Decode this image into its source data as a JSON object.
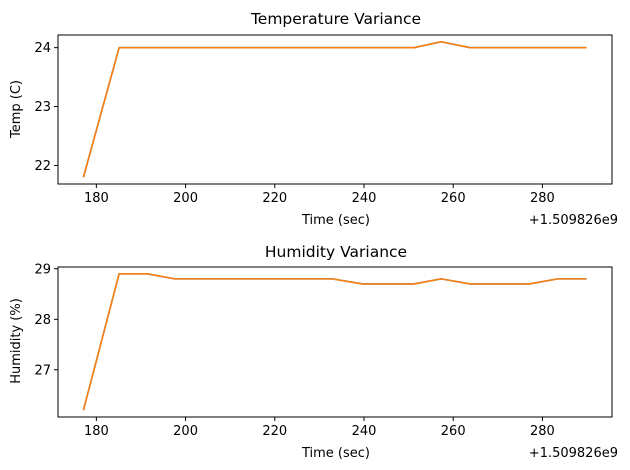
{
  "chart_data": [
    {
      "type": "line",
      "title": "Temperature Variance",
      "xlabel": "Time (sec)",
      "ylabel": "Temp (C)",
      "x_offset_label": "+1.509826e9",
      "xlim": [
        171.4,
        295.6
      ],
      "ylim": [
        21.685,
        24.215
      ],
      "xticks": [
        180,
        200,
        220,
        240,
        260,
        280
      ],
      "yticks": [
        22,
        23,
        24
      ],
      "grid": false,
      "series": [
        {
          "color": "#1f77b4",
          "x": [
            177.1,
            185.1,
            191.4,
            197.6,
            203.6,
            209.4,
            215.2,
            221.1,
            227.0,
            232.9,
            239.7,
            245.3,
            251.2,
            257.3,
            263.8,
            269.5,
            277.1,
            283.4,
            289.9
          ],
          "values": [
            21.8,
            24.0,
            24.0,
            24.0,
            24.0,
            24.0,
            24.0,
            24.0,
            24.0,
            24.0,
            24.0,
            24.0,
            24.0,
            24.1,
            24.0,
            24.0,
            24.0,
            24.0,
            24.0
          ]
        },
        {
          "color": "#ff7f0e",
          "x": [
            177.1,
            185.1,
            191.4,
            197.6,
            203.6,
            209.4,
            215.2,
            221.1,
            227.0,
            232.9,
            239.7,
            245.3,
            251.2,
            257.3,
            263.8,
            269.5,
            277.1,
            283.4,
            289.9
          ],
          "values": [
            21.8,
            24.0,
            24.0,
            24.0,
            24.0,
            24.0,
            24.0,
            24.0,
            24.0,
            24.0,
            24.0,
            24.0,
            24.0,
            24.1,
            24.0,
            24.0,
            24.0,
            24.0,
            24.0
          ]
        }
      ]
    },
    {
      "type": "line",
      "title": "Humidity Variance",
      "xlabel": "Time (sec)",
      "ylabel": "Humidity (%)",
      "x_offset_label": "+1.509826e9",
      "xlim": [
        171.4,
        295.6
      ],
      "ylim": [
        26.065,
        29.035
      ],
      "xticks": [
        180,
        200,
        220,
        240,
        260,
        280
      ],
      "yticks": [
        27,
        28,
        29
      ],
      "grid": false,
      "series": [
        {
          "color": "#1f77b4",
          "x": [
            177.1,
            185.1,
            191.4,
            197.6,
            203.6,
            209.4,
            215.2,
            221.1,
            227.0,
            232.9,
            239.7,
            245.3,
            251.2,
            257.3,
            263.8,
            269.5,
            277.1,
            283.4,
            289.9
          ],
          "values": [
            26.2,
            28.9,
            28.9,
            28.8,
            28.8,
            28.8,
            28.8,
            28.8,
            28.8,
            28.8,
            28.7,
            28.7,
            28.7,
            28.8,
            28.7,
            28.7,
            28.7,
            28.8,
            28.8
          ]
        },
        {
          "color": "#ff7f0e",
          "x": [
            177.1,
            185.1,
            191.4,
            197.6,
            203.6,
            209.4,
            215.2,
            221.1,
            227.0,
            232.9,
            239.7,
            245.3,
            251.2,
            257.3,
            263.8,
            269.5,
            277.1,
            283.4,
            289.9
          ],
          "values": [
            26.2,
            28.9,
            28.9,
            28.8,
            28.8,
            28.8,
            28.8,
            28.8,
            28.8,
            28.8,
            28.7,
            28.7,
            28.7,
            28.8,
            28.7,
            28.7,
            28.7,
            28.8,
            28.8
          ]
        }
      ]
    }
  ]
}
